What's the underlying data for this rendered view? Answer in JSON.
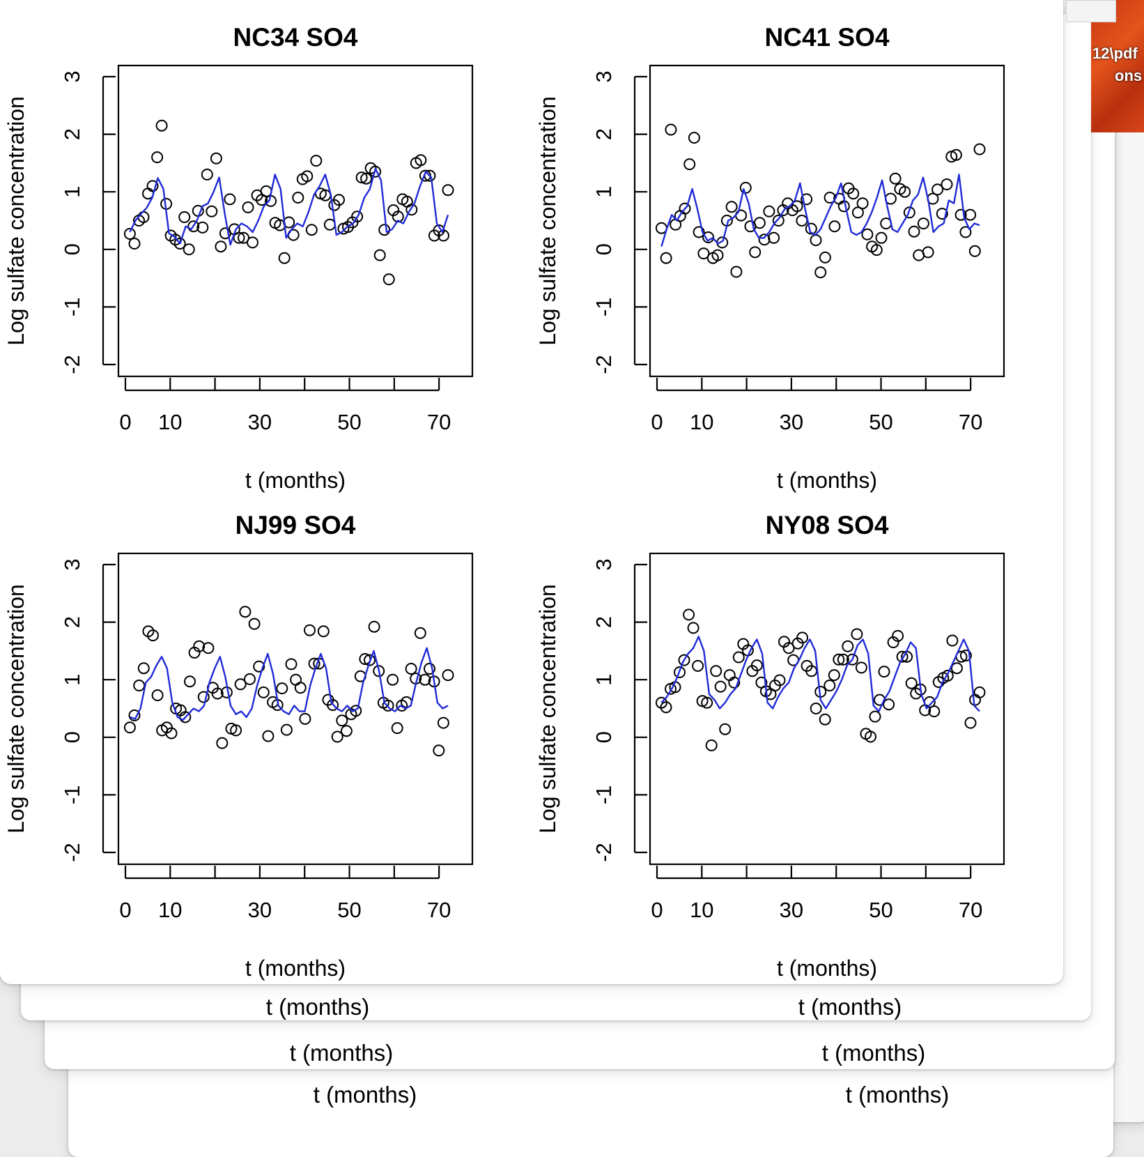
{
  "background_windows": [
    {
      "labels": [
        "t (months)",
        "t (months)"
      ]
    },
    {
      "labels": [
        "t (months)",
        "t (months)"
      ]
    },
    {
      "labels": [
        "t (months)",
        "t (months)"
      ]
    }
  ],
  "thumbnail": {
    "text_lines": [
      "12\\pdf",
      "ons"
    ]
  },
  "colors": {
    "fitted_line": "#1f2ad6",
    "points": "#000000",
    "window": "#ffffff"
  },
  "chart_data": [
    {
      "type": "scatter",
      "title": "NC34 SO4",
      "xlabel": "t (months)",
      "ylabel": "Log sulfate concentration",
      "xlim": [
        0,
        72
      ],
      "ylim": [
        -2,
        3
      ],
      "xticks": [
        0,
        10,
        20,
        30,
        40,
        50,
        60,
        70
      ],
      "xtick_labels": [
        "0",
        "10",
        "",
        "30",
        "",
        "50",
        "",
        "70"
      ],
      "yticks": [
        -2,
        -1,
        0,
        1,
        2,
        3
      ],
      "ytick_labels": [
        "-2",
        "-1",
        "0",
        "1",
        "2",
        "3"
      ],
      "grid": false,
      "series": [
        {
          "kind": "points",
          "y": [
            0.27,
            0.1,
            0.5,
            0.56,
            0.97,
            1.1,
            1.6,
            2.15,
            0.79,
            0.24,
            0.17,
            0.1,
            0.56,
            0.0,
            0.4,
            0.67,
            0.38,
            1.3,
            0.66,
            1.58,
            0.05,
            0.28,
            0.87,
            0.35,
            0.2,
            0.2,
            0.73,
            0.12,
            0.94,
            0.86,
            1.01,
            0.84,
            0.46,
            0.42,
            -0.15,
            0.47,
            0.25,
            0.9,
            1.22,
            1.27,
            0.34,
            1.54,
            0.97,
            0.94,
            0.43,
            0.77,
            0.86,
            0.36,
            0.39,
            0.47,
            0.57,
            1.25,
            1.23,
            1.41,
            1.35,
            -0.1,
            0.34,
            -0.52,
            0.68,
            0.57,
            0.87,
            0.83,
            0.69,
            1.5,
            1.55,
            1.28,
            1.28,
            0.24,
            0.33,
            0.24,
            1.03
          ]
        },
        {
          "kind": "line",
          "y": [
            0.3,
            0.5,
            0.62,
            0.72,
            0.9,
            1.24,
            1.05,
            0.28,
            0.22,
            0.1,
            0.4,
            0.35,
            0.5,
            0.75,
            0.8,
            1.0,
            1.25,
            0.62,
            0.08,
            0.35,
            0.45,
            0.4,
            0.3,
            0.5,
            0.75,
            0.85,
            1.3,
            1.05,
            0.2,
            0.35,
            0.45,
            0.4,
            0.65,
            0.95,
            1.1,
            1.3,
            0.95,
            0.25,
            0.3,
            0.4,
            0.45,
            0.6,
            0.9,
            1.05,
            1.4,
            1.2,
            0.3,
            0.35,
            0.5,
            0.45,
            0.65,
            0.8,
            1.1,
            1.35,
            1.25,
            0.45,
            0.3,
            0.6
          ]
        }
      ]
    },
    {
      "type": "scatter",
      "title": "NC41 SO4",
      "xlabel": "t (months)",
      "ylabel": "Log sulfate concentration",
      "xlim": [
        0,
        72
      ],
      "ylim": [
        -2,
        3
      ],
      "xticks": [
        0,
        10,
        20,
        30,
        40,
        50,
        60,
        70
      ],
      "xtick_labels": [
        "0",
        "10",
        "",
        "30",
        "",
        "50",
        "",
        "70"
      ],
      "yticks": [
        -2,
        -1,
        0,
        1,
        2,
        3
      ],
      "ytick_labels": [
        "-2",
        "-1",
        "0",
        "1",
        "2",
        "3"
      ],
      "grid": false,
      "series": [
        {
          "kind": "points",
          "y": [
            0.37,
            -0.15,
            2.08,
            0.43,
            0.58,
            0.71,
            1.48,
            1.94,
            0.3,
            -0.07,
            0.21,
            -0.15,
            -0.1,
            0.12,
            0.5,
            0.74,
            -0.39,
            0.59,
            1.07,
            0.4,
            -0.05,
            0.46,
            0.17,
            0.66,
            0.2,
            0.5,
            0.68,
            0.8,
            0.68,
            0.75,
            0.5,
            0.87,
            0.36,
            0.16,
            -0.4,
            -0.14,
            0.9,
            0.4,
            0.88,
            0.75,
            1.06,
            0.97,
            0.64,
            0.8,
            0.26,
            0.05,
            -0.01,
            0.2,
            0.45,
            0.88,
            1.23,
            1.05,
            1.0,
            0.64,
            0.31,
            -0.1,
            0.45,
            -0.05,
            0.88,
            1.04,
            0.62,
            1.13,
            1.61,
            1.64,
            0.6,
            0.3,
            0.6,
            -0.03,
            1.74
          ]
        },
        {
          "kind": "line",
          "y": [
            0.05,
            0.35,
            0.6,
            0.5,
            0.65,
            0.75,
            1.05,
            0.7,
            0.3,
            0.15,
            0.2,
            0.1,
            0.15,
            0.5,
            0.55,
            0.65,
            1.05,
            0.8,
            0.35,
            0.2,
            0.2,
            0.3,
            0.45,
            0.55,
            0.7,
            0.75,
            0.85,
            1.15,
            0.7,
            0.3,
            0.25,
            0.35,
            0.55,
            0.75,
            0.9,
            1.15,
            0.7,
            0.3,
            0.25,
            0.3,
            0.45,
            0.65,
            0.9,
            1.2,
            0.75,
            0.35,
            0.3,
            0.45,
            0.6,
            0.85,
            0.95,
            1.25,
            0.85,
            0.3,
            0.4,
            0.45,
            0.85,
            0.8,
            1.3,
            0.55,
            0.35,
            0.45,
            0.42
          ]
        }
      ]
    },
    {
      "type": "scatter",
      "title": "NJ99 SO4",
      "xlabel": "t (months)",
      "ylabel": "Log sulfate concentration",
      "xlim": [
        0,
        72
      ],
      "ylim": [
        -2,
        3
      ],
      "xticks": [
        0,
        10,
        20,
        30,
        40,
        50,
        60,
        70
      ],
      "xtick_labels": [
        "0",
        "10",
        "",
        "30",
        "",
        "50",
        "",
        "70"
      ],
      "yticks": [
        -2,
        -1,
        0,
        1,
        2,
        3
      ],
      "ytick_labels": [
        "-2",
        "-1",
        "0",
        "1",
        "2",
        "3"
      ],
      "grid": false,
      "series": [
        {
          "kind": "points",
          "y": [
            0.17,
            0.38,
            0.9,
            1.2,
            1.84,
            1.77,
            0.73,
            0.12,
            0.17,
            0.07,
            0.5,
            0.47,
            0.35,
            0.97,
            1.47,
            1.58,
            0.7,
            1.55,
            0.86,
            0.76,
            -0.1,
            0.78,
            0.15,
            0.12,
            0.92,
            2.18,
            1.01,
            1.97,
            1.23,
            0.78,
            0.02,
            0.61,
            0.56,
            0.85,
            0.13,
            1.27,
            1.0,
            0.86,
            0.32,
            1.86,
            1.28,
            1.28,
            1.84,
            0.65,
            0.56,
            0.01,
            0.29,
            0.11,
            0.4,
            0.46,
            1.06,
            1.36,
            1.34,
            1.92,
            1.15,
            0.6,
            0.55,
            1.0,
            0.16,
            0.55,
            0.61,
            1.19,
            1.02,
            1.81,
            1.0,
            1.19,
            0.97,
            -0.23,
            0.25,
            1.08
          ]
        },
        {
          "kind": "line",
          "y": [
            0.35,
            0.32,
            0.5,
            0.95,
            1.05,
            1.25,
            1.4,
            1.2,
            0.6,
            0.35,
            0.3,
            0.4,
            0.5,
            0.45,
            0.55,
            0.95,
            1.2,
            1.4,
            1.05,
            0.55,
            0.4,
            0.45,
            0.35,
            0.5,
            0.9,
            1.2,
            1.45,
            1.1,
            0.55,
            0.45,
            0.4,
            0.55,
            0.45,
            0.45,
            0.9,
            1.2,
            1.45,
            1.2,
            0.6,
            0.5,
            0.45,
            0.55,
            0.45,
            0.5,
            0.95,
            1.25,
            1.5,
            1.15,
            0.6,
            0.5,
            0.45,
            0.55,
            0.5,
            0.55,
            0.95,
            1.3,
            1.55,
            1.2,
            0.6,
            0.5,
            0.55
          ]
        }
      ]
    },
    {
      "type": "scatter",
      "title": "NY08 SO4",
      "xlabel": "t (months)",
      "ylabel": "Log sulfate concentration",
      "xlim": [
        0,
        72
      ],
      "ylim": [
        -2,
        3
      ],
      "xticks": [
        0,
        10,
        20,
        30,
        40,
        50,
        60,
        70
      ],
      "xtick_labels": [
        "0",
        "10",
        "",
        "30",
        "",
        "50",
        "",
        "70"
      ],
      "yticks": [
        -2,
        -1,
        0,
        1,
        2,
        3
      ],
      "ytick_labels": [
        "-2",
        "-1",
        "0",
        "1",
        "2",
        "3"
      ],
      "grid": false,
      "series": [
        {
          "kind": "points",
          "y": [
            0.6,
            0.52,
            0.84,
            0.87,
            1.13,
            1.34,
            2.13,
            1.9,
            1.24,
            0.63,
            0.6,
            -0.14,
            1.15,
            0.88,
            0.14,
            1.08,
            0.95,
            1.39,
            1.62,
            1.51,
            1.15,
            1.25,
            0.95,
            0.8,
            0.75,
            0.9,
            0.99,
            1.66,
            1.55,
            1.34,
            1.63,
            1.73,
            1.24,
            1.15,
            0.5,
            0.79,
            0.31,
            0.9,
            1.08,
            1.35,
            1.35,
            1.58,
            1.35,
            1.79,
            1.21,
            0.06,
            0.01,
            0.36,
            0.65,
            1.14,
            0.57,
            1.65,
            1.76,
            1.4,
            1.4,
            0.94,
            0.76,
            0.83,
            0.47,
            0.61,
            0.45,
            0.96,
            1.03,
            1.07,
            1.68,
            1.2,
            1.4,
            1.42,
            0.25,
            0.65,
            0.78
          ]
        },
        {
          "kind": "line",
          "y": [
            0.6,
            0.7,
            0.85,
            1.05,
            1.3,
            1.45,
            1.55,
            1.75,
            1.5,
            0.75,
            0.65,
            0.5,
            0.6,
            0.75,
            0.85,
            1.1,
            1.35,
            1.55,
            1.7,
            1.45,
            0.6,
            0.5,
            0.7,
            0.85,
            0.95,
            1.2,
            1.35,
            1.55,
            1.7,
            1.5,
            0.65,
            0.5,
            0.65,
            0.8,
            1.0,
            1.25,
            1.35,
            1.6,
            1.7,
            1.45,
            0.55,
            0.45,
            0.65,
            0.8,
            1.05,
            1.3,
            1.45,
            1.65,
            1.55,
            0.75,
            0.5,
            0.6,
            0.7,
            0.95,
            1.1,
            1.3,
            1.5,
            1.7,
            1.5,
            0.55,
            0.45
          ]
        }
      ]
    }
  ]
}
